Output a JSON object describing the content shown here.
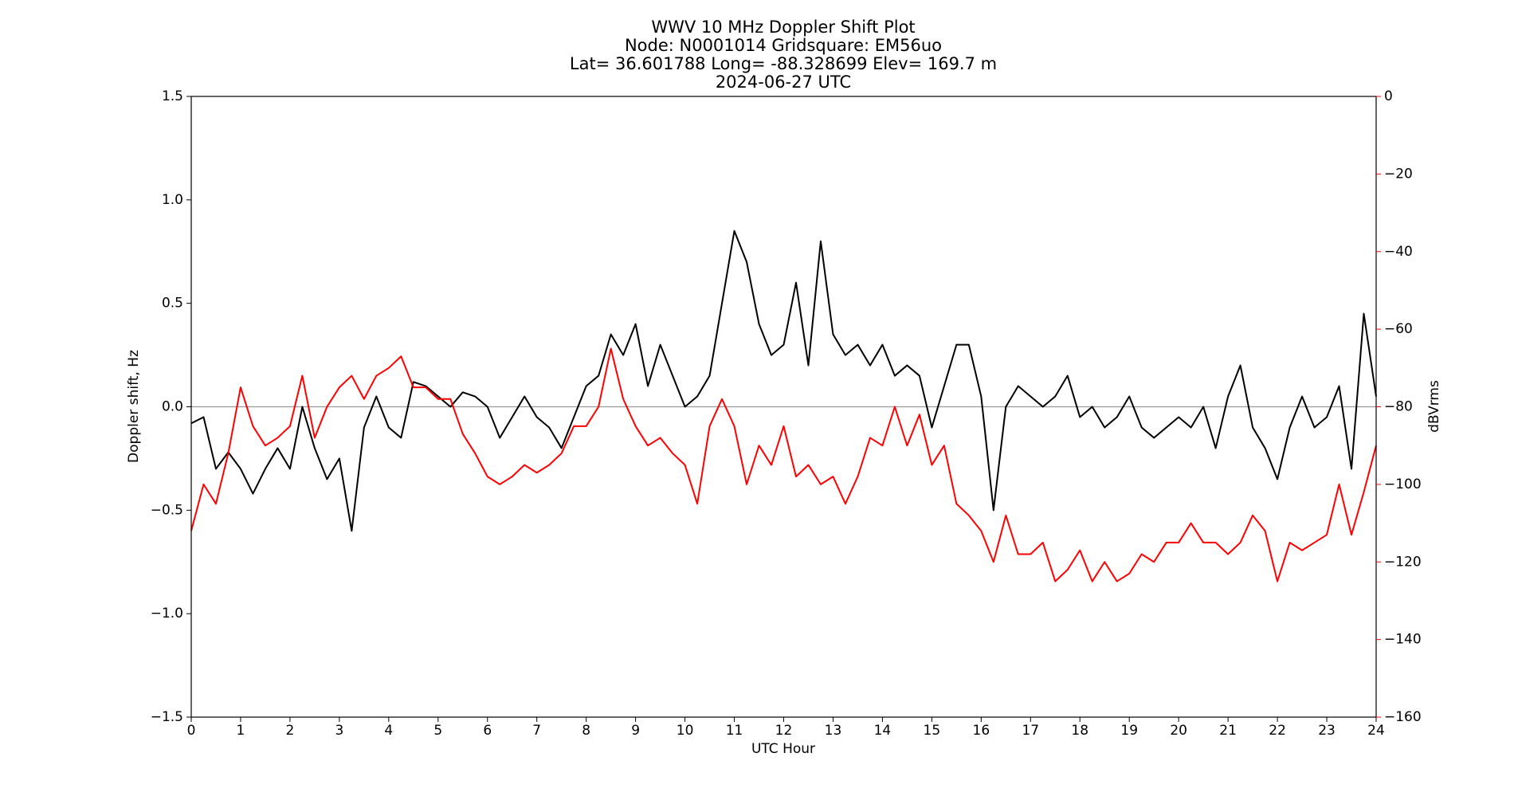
{
  "chart_data": {
    "type": "line",
    "title": [
      "WWV 10 MHz Doppler Shift Plot",
      "Node:  N0001014     Gridsquare:  EM56uo",
      "Lat= 36.601788    Long= -88.328699    Elev= 169.7 m",
      "2024-06-27  UTC"
    ],
    "xlabel": "UTC Hour",
    "ylabel": "Doppler shift, Hz",
    "y2label": "dBVrms",
    "y2color": "#ff0000",
    "xlim": [
      0,
      24
    ],
    "xticks": [
      0,
      1,
      2,
      3,
      4,
      5,
      6,
      7,
      8,
      9,
      10,
      11,
      12,
      13,
      14,
      15,
      16,
      17,
      18,
      19,
      20,
      21,
      22,
      23,
      24
    ],
    "ylim": [
      -1.5,
      1.5
    ],
    "yticks": [
      {
        "value": -1.5,
        "label": "−1.5"
      },
      {
        "value": -1,
        "label": "−1.0"
      },
      {
        "value": -0.5,
        "label": "−0.5"
      },
      {
        "value": 0,
        "label": "0.0"
      },
      {
        "value": 0.5,
        "label": "0.5"
      },
      {
        "value": 1,
        "label": "1.0"
      },
      {
        "value": 1.5,
        "label": "1.5"
      }
    ],
    "y2lim": [
      -160,
      0
    ],
    "y2ticks": [
      {
        "value": -160,
        "label": "−160"
      },
      {
        "value": -140,
        "label": "−140"
      },
      {
        "value": -120,
        "label": "−120"
      },
      {
        "value": -100,
        "label": "−100"
      },
      {
        "value": -80,
        "label": "−80"
      },
      {
        "value": -60,
        "label": "−60"
      },
      {
        "value": -40,
        "label": "−40"
      },
      {
        "value": -20,
        "label": "−20"
      },
      0
    ],
    "zero_line": {
      "value": 0,
      "color": "#999999"
    },
    "x": [
      0,
      0.25,
      0.5,
      0.75,
      1,
      1.25,
      1.5,
      1.75,
      2,
      2.25,
      2.5,
      2.75,
      3,
      3.25,
      3.5,
      3.75,
      4,
      4.25,
      4.5,
      4.75,
      5,
      5.25,
      5.5,
      5.75,
      6,
      6.25,
      6.5,
      6.75,
      7,
      7.25,
      7.5,
      7.75,
      8,
      8.25,
      8.5,
      8.75,
      9,
      9.25,
      9.5,
      9.75,
      10,
      10.25,
      10.5,
      10.75,
      11,
      11.25,
      11.5,
      11.75,
      12,
      12.25,
      12.5,
      12.75,
      13,
      13.25,
      13.5,
      13.75,
      14,
      14.25,
      14.5,
      14.75,
      15,
      15.25,
      15.5,
      15.75,
      16,
      16.25,
      16.5,
      16.75,
      17,
      17.25,
      17.5,
      17.75,
      18,
      18.25,
      18.5,
      18.75,
      19,
      19.25,
      19.5,
      19.75,
      20,
      20.25,
      20.5,
      20.75,
      21,
      21.25,
      21.5,
      21.75,
      22,
      22.25,
      22.5,
      22.75,
      23,
      23.25,
      23.5,
      23.75,
      24
    ],
    "series": [
      {
        "color": "#000000",
        "values": [
          -0.08,
          -0.05,
          -0.3,
          -0.22,
          -0.3,
          -0.42,
          -0.3,
          -0.2,
          -0.3,
          0.0,
          -0.2,
          -0.35,
          -0.25,
          -0.6,
          -0.1,
          0.05,
          -0.1,
          -0.15,
          0.12,
          0.1,
          0.05,
          0.0,
          0.07,
          0.05,
          0.0,
          -0.15,
          -0.05,
          0.05,
          -0.05,
          -0.1,
          -0.2,
          -0.05,
          0.1,
          0.15,
          0.35,
          0.25,
          0.4,
          0.1,
          0.3,
          0.15,
          0.0,
          0.05,
          0.15,
          0.5,
          0.85,
          0.7,
          0.4,
          0.25,
          0.3,
          0.6,
          0.2,
          0.8,
          0.35,
          0.25,
          0.3,
          0.2,
          0.3,
          0.15,
          0.2,
          0.15,
          -0.1,
          0.1,
          0.3,
          0.3,
          0.05,
          -0.5,
          0.0,
          0.1,
          0.05,
          0.0,
          0.05,
          0.15,
          -0.05,
          0.0,
          -0.1,
          -0.05,
          0.05,
          -0.1,
          -0.15,
          -0.1,
          -0.05,
          -0.1,
          0.0,
          -0.2,
          0.05,
          0.2,
          -0.1,
          -0.2,
          -0.35,
          -0.1,
          0.05,
          -0.1,
          -0.05,
          0.1,
          -0.3,
          0.45,
          0.05
        ]
      },
      {
        "color": "#ff0000",
        "axis": "y2",
        "values": [
          -112,
          -100,
          -105,
          -92,
          -75,
          -85,
          -90,
          -88,
          -85,
          -72,
          -88,
          -80,
          -75,
          -72,
          -78,
          -72,
          -70,
          -67,
          -75,
          -75,
          -78,
          -78,
          -87,
          -92,
          -98,
          -100,
          -98,
          -95,
          -97,
          -95,
          -92,
          -85,
          -85,
          -80,
          -65,
          -78,
          -85,
          -90,
          -88,
          -92,
          -95,
          -105,
          -85,
          -78,
          -85,
          -100,
          -90,
          -95,
          -85,
          -98,
          -95,
          -100,
          -98,
          -105,
          -98,
          -88,
          -90,
          -80,
          -90,
          -82,
          -95,
          -90,
          -105,
          -108,
          -112,
          -120,
          -108,
          -118,
          -118,
          -115,
          -125,
          -122,
          -117,
          -125,
          -120,
          -125,
          -123,
          -118,
          -120,
          -115,
          -115,
          -110,
          -115,
          -115,
          -118,
          -115,
          -108,
          -112,
          -125,
          -115,
          -117,
          -115,
          -113,
          -100,
          -113,
          -102,
          -90
        ]
      }
    ]
  }
}
